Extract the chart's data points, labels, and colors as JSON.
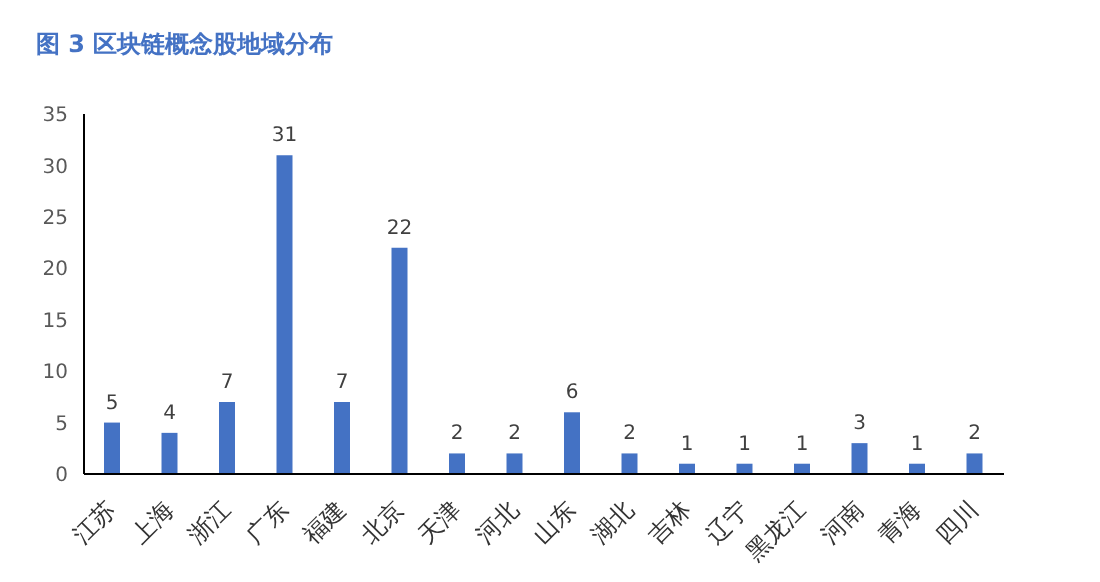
{
  "chart_data": {
    "type": "bar",
    "title": "图 3 区块链概念股地域分布",
    "categories": [
      "江苏",
      "上海",
      "浙江",
      "广东",
      "福建",
      "北京",
      "天津",
      "河北",
      "山东",
      "湖北",
      "吉林",
      "辽宁",
      "黑龙江",
      "河南",
      "青海",
      "四川"
    ],
    "values": [
      5,
      4,
      7,
      31,
      7,
      22,
      2,
      2,
      6,
      2,
      1,
      1,
      1,
      3,
      1,
      2
    ],
    "color": "#4472c4",
    "ylim": [
      0,
      35
    ],
    "yticks": [
      0,
      5,
      10,
      15,
      20,
      25,
      30,
      35
    ],
    "grid": false,
    "data_labels": true
  }
}
